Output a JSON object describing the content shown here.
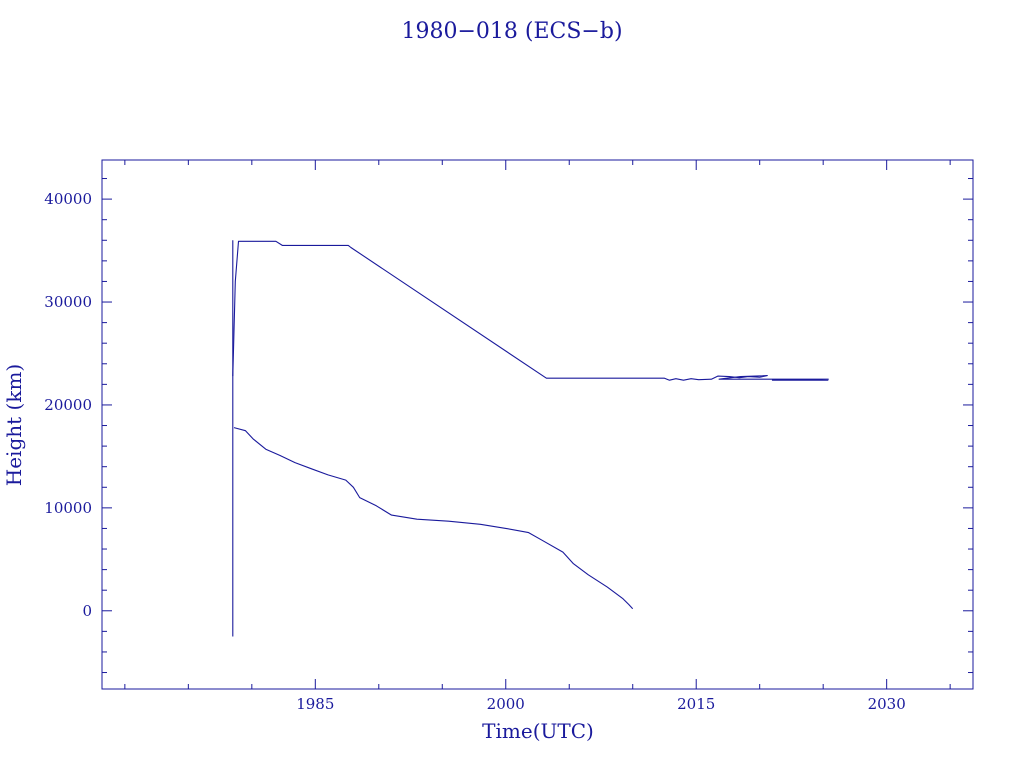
{
  "chart_data": {
    "type": "line",
    "title": "1980−018 (ECS−b)",
    "xlabel": "Time(UTC)",
    "ylabel": "Height (km)",
    "xlim": [
      1968.2,
      2036.8
    ],
    "ylim": [
      -7600,
      43800
    ],
    "x_ticks": [
      1985,
      2000,
      2015,
      2030
    ],
    "x_tick_labels": [
      "1985",
      "2000",
      "2015",
      "2030"
    ],
    "y_ticks": [
      0,
      10000,
      20000,
      30000,
      40000
    ],
    "y_tick_labels": [
      "0",
      "10000",
      "20000",
      "30000",
      "40000"
    ],
    "grid": false,
    "color": "#1a1a9c",
    "series": [
      {
        "values": [
          [
            1978.5,
            22800
          ],
          [
            1978.7,
            32000
          ],
          [
            1978.95,
            35900
          ],
          [
            1981.9,
            35900
          ],
          [
            1982.4,
            35500
          ],
          [
            1987.6,
            35500
          ],
          [
            1987.8,
            35300
          ],
          [
            2003.2,
            22600
          ],
          [
            2012.5,
            22600
          ],
          [
            2012.9,
            22400
          ],
          [
            2013.4,
            22550
          ],
          [
            2014.0,
            22400
          ],
          [
            2014.6,
            22550
          ],
          [
            2015.2,
            22450
          ],
          [
            2016.2,
            22500
          ],
          [
            2016.7,
            22800
          ],
          [
            2017.6,
            22750
          ],
          [
            2018.4,
            22650
          ],
          [
            2019.1,
            22750
          ],
          [
            2020.0,
            22700
          ],
          [
            2020.6,
            22850
          ],
          [
            2018.5,
            22750
          ],
          [
            2017.4,
            22600
          ],
          [
            2016.8,
            22500
          ],
          [
            2017.4,
            22500
          ],
          [
            2019.5,
            22500
          ],
          [
            2025.4,
            22500
          ],
          [
            2021.0,
            22400
          ],
          [
            2025.4,
            22400
          ]
        ]
      },
      {
        "values": [
          [
            1978.5,
            36000
          ],
          [
            1978.5,
            -2500
          ]
        ]
      },
      {
        "values": [
          [
            1978.6,
            17800
          ],
          [
            1979.5,
            17500
          ],
          [
            1980.1,
            16700
          ],
          [
            1981.1,
            15700
          ],
          [
            1982.2,
            15100
          ],
          [
            1983.4,
            14400
          ],
          [
            1984.7,
            13800
          ],
          [
            1986.0,
            13200
          ],
          [
            1987.4,
            12700
          ],
          [
            1988.0,
            12000
          ],
          [
            1988.5,
            11000
          ],
          [
            1989.8,
            10200
          ],
          [
            1991.0,
            9300
          ],
          [
            1993.0,
            8900
          ],
          [
            1995.5,
            8700
          ],
          [
            1998.0,
            8400
          ],
          [
            2000.0,
            8000
          ],
          [
            2001.8,
            7600
          ],
          [
            2002.8,
            6900
          ],
          [
            2004.5,
            5700
          ],
          [
            2005.3,
            4600
          ],
          [
            2006.5,
            3500
          ],
          [
            2008.0,
            2300
          ],
          [
            2009.2,
            1200
          ],
          [
            2009.7,
            600
          ],
          [
            2010.0,
            200
          ]
        ]
      }
    ]
  }
}
